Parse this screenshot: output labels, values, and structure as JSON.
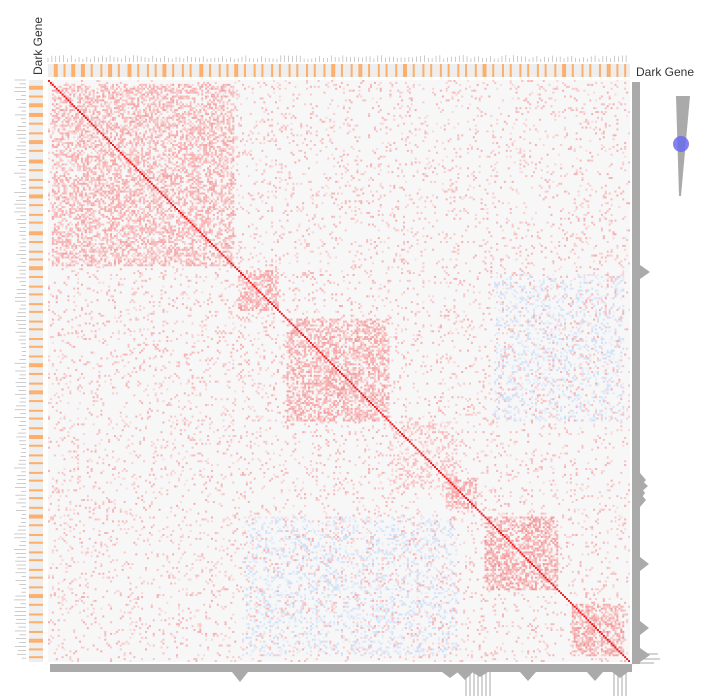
{
  "chart_data": {
    "type": "heatmap",
    "labels": {
      "top_track": "Dark Gene",
      "left_track": "Dark Gene"
    },
    "n_genes": 300,
    "dark_gene_indices": [
      3,
      4,
      8,
      12,
      13,
      17,
      18,
      22,
      27,
      31,
      32,
      36,
      41,
      42,
      46,
      51,
      55,
      59,
      60,
      64,
      69,
      73,
      78,
      79,
      83,
      88,
      92,
      96,
      97,
      101,
      106,
      110,
      115,
      119,
      124,
      128,
      133,
      137,
      142,
      146,
      147,
      151,
      156,
      160,
      161,
      165,
      170,
      174,
      179,
      183,
      184,
      188,
      193,
      197,
      202,
      206,
      211,
      215,
      220,
      224,
      225,
      229,
      234,
      238,
      243,
      247,
      252,
      256,
      261,
      265,
      266,
      270,
      275,
      279,
      284,
      288,
      289,
      293,
      297
    ],
    "clusters": [
      {
        "start": 2,
        "end": 95,
        "strength": 0.7,
        "density": 0.45
      },
      {
        "start": 98,
        "end": 118,
        "strength": 0.75,
        "density": 0.55
      },
      {
        "start": 123,
        "end": 175,
        "strength": 0.75,
        "density": 0.5
      },
      {
        "start": 176,
        "end": 210,
        "strength": 0.55,
        "density": 0.25
      },
      {
        "start": 205,
        "end": 220,
        "strength": 0.75,
        "density": 0.55
      },
      {
        "start": 225,
        "end": 262,
        "strength": 0.8,
        "density": 0.55
      },
      {
        "start": 270,
        "end": 296,
        "strength": 0.8,
        "density": 0.6
      }
    ],
    "anticorrelated_blocks": [
      {
        "rows": [
          100,
          175
        ],
        "cols": [
          230,
          296
        ],
        "strength": 0.45,
        "density": 0.22
      },
      {
        "rows": [
          225,
          296
        ],
        "cols": [
          100,
          210
        ],
        "strength": 0.45,
        "density": 0.22
      }
    ],
    "color_scale": {
      "negative": "#3b7ddd",
      "zero": "#ffffff",
      "positive": "#e41a1c",
      "dark_gene": "#fdae6b",
      "dendrogram": "#aaaaaa",
      "slider_knob": "#6b6bf0"
    },
    "value_range": [
      -1,
      1
    ],
    "threshold_slider": {
      "value": 0.4
    }
  }
}
